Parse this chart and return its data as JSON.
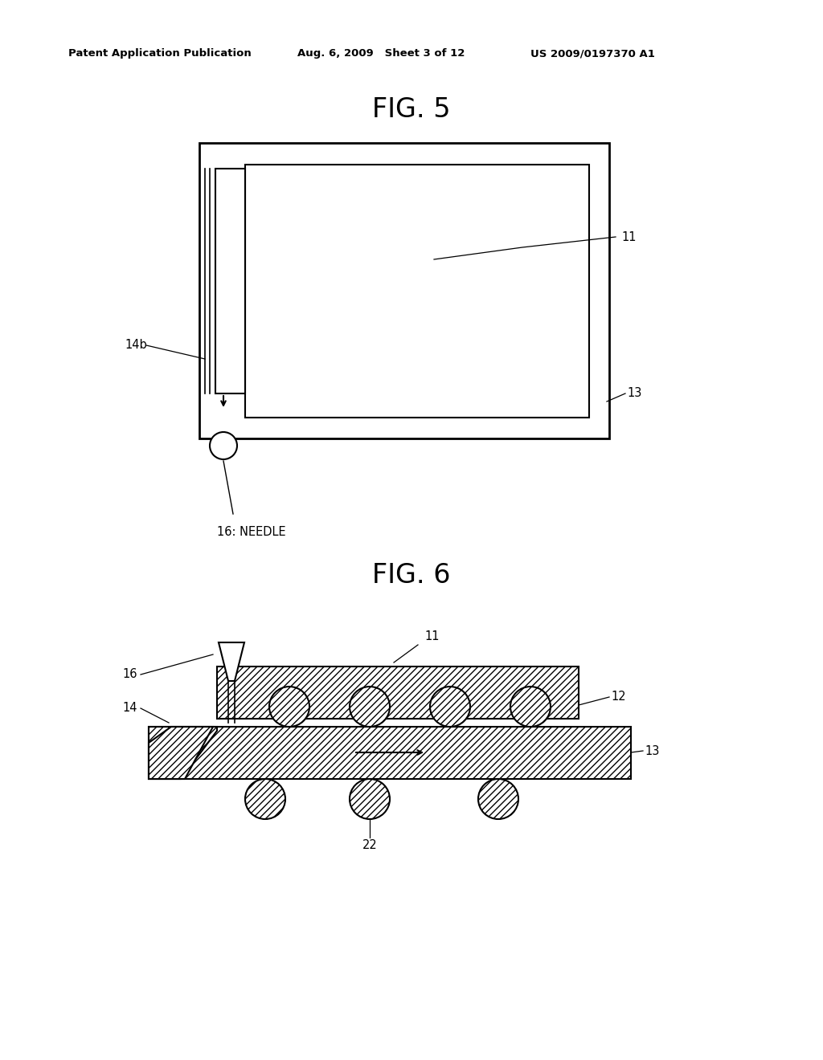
{
  "background_color": "#ffffff",
  "header_left": "Patent Application Publication",
  "header_mid": "Aug. 6, 2009   Sheet 3 of 12",
  "header_right": "US 2009/0197370 A1",
  "fig5_title": "FIG. 5",
  "fig6_title": "FIG. 6",
  "line_color": "#000000",
  "label_11_fig5": "11",
  "label_13_fig5": "13",
  "label_14b": "14b",
  "label_16_needle": "16: NEEDLE",
  "label_11_fig6": "11",
  "label_12": "12",
  "label_13_fig6": "13",
  "label_14_fig6": "14",
  "label_16_fig6": "16",
  "label_22": "22"
}
